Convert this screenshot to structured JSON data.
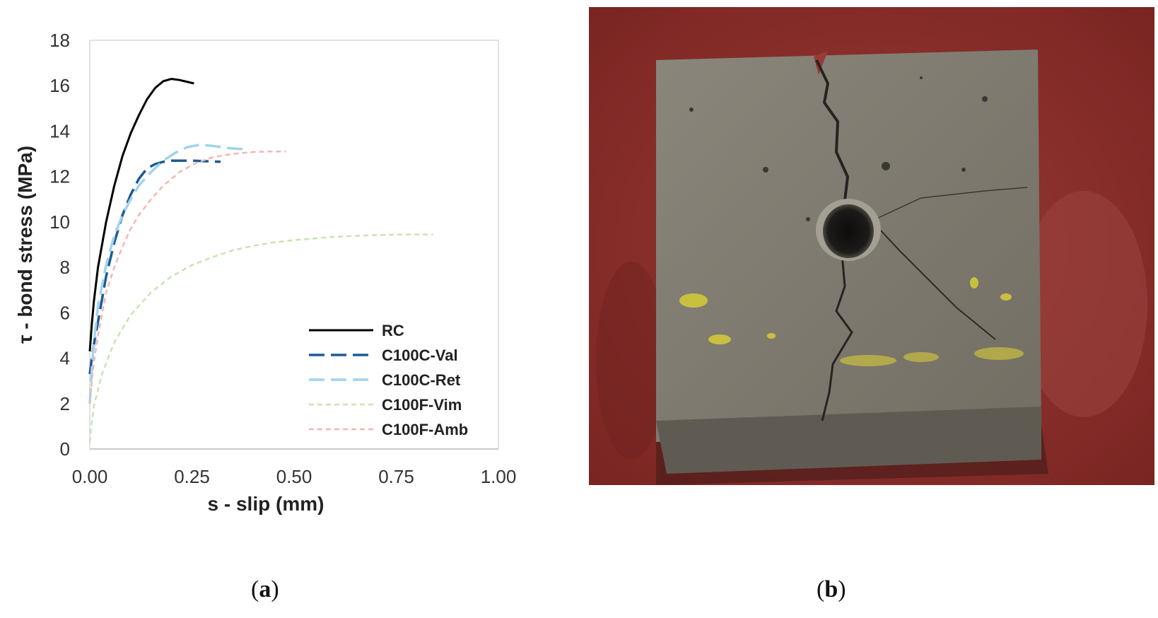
{
  "chart_data": {
    "type": "line",
    "title": "",
    "xlabel": "s - slip (mm)",
    "ylabel": "τ - bond stress (MPa)",
    "xlim": [
      0,
      1
    ],
    "ylim": [
      0,
      18
    ],
    "xticks": [
      "0.00",
      "0.25",
      "0.50",
      "0.75",
      "1.00"
    ],
    "yticks": [
      "0",
      "2",
      "4",
      "6",
      "8",
      "10",
      "12",
      "14",
      "16",
      "18"
    ],
    "grid": false,
    "legend_position": "bottom-right",
    "series": [
      {
        "name": "RC",
        "color": "#000000",
        "dash": "solid",
        "points": [
          [
            0,
            4.3
          ],
          [
            0.005,
            5.5
          ],
          [
            0.01,
            6.5
          ],
          [
            0.02,
            8.0
          ],
          [
            0.04,
            10.0
          ],
          [
            0.06,
            11.6
          ],
          [
            0.08,
            12.9
          ],
          [
            0.1,
            13.9
          ],
          [
            0.12,
            14.7
          ],
          [
            0.14,
            15.4
          ],
          [
            0.16,
            15.9
          ],
          [
            0.18,
            16.2
          ],
          [
            0.2,
            16.3
          ],
          [
            0.22,
            16.25
          ],
          [
            0.255,
            16.1
          ]
        ]
      },
      {
        "name": "C100C-Val",
        "color": "#1f5a96",
        "dash": "longdash",
        "points": [
          [
            0,
            3.3
          ],
          [
            0.005,
            4.0
          ],
          [
            0.01,
            4.6
          ],
          [
            0.02,
            5.6
          ],
          [
            0.04,
            7.6
          ],
          [
            0.06,
            9.1
          ],
          [
            0.08,
            10.3
          ],
          [
            0.1,
            11.2
          ],
          [
            0.12,
            11.9
          ],
          [
            0.14,
            12.35
          ],
          [
            0.16,
            12.55
          ],
          [
            0.18,
            12.65
          ],
          [
            0.2,
            12.7
          ],
          [
            0.25,
            12.7
          ],
          [
            0.32,
            12.65
          ]
        ]
      },
      {
        "name": "C100C-Ret",
        "color": "#9fd4ec",
        "dash": "longdash",
        "points": [
          [
            0,
            2.0
          ],
          [
            0.005,
            3.5
          ],
          [
            0.01,
            4.7
          ],
          [
            0.02,
            6.3
          ],
          [
            0.04,
            8.1
          ],
          [
            0.06,
            9.4
          ],
          [
            0.08,
            10.3
          ],
          [
            0.1,
            11.0
          ],
          [
            0.12,
            11.6
          ],
          [
            0.15,
            12.2
          ],
          [
            0.18,
            12.7
          ],
          [
            0.21,
            13.05
          ],
          [
            0.24,
            13.3
          ],
          [
            0.27,
            13.4
          ],
          [
            0.3,
            13.35
          ],
          [
            0.34,
            13.25
          ],
          [
            0.38,
            13.2
          ]
        ]
      },
      {
        "name": "C100F-Vim",
        "color": "#c9e4b2",
        "dash": "shortdash",
        "points": [
          [
            0,
            0.3
          ],
          [
            0.005,
            1.2
          ],
          [
            0.01,
            1.9
          ],
          [
            0.03,
            3.3
          ],
          [
            0.06,
            4.7
          ],
          [
            0.1,
            5.9
          ],
          [
            0.15,
            6.9
          ],
          [
            0.2,
            7.6
          ],
          [
            0.25,
            8.1
          ],
          [
            0.3,
            8.45
          ],
          [
            0.35,
            8.75
          ],
          [
            0.4,
            8.95
          ],
          [
            0.45,
            9.1
          ],
          [
            0.5,
            9.2
          ],
          [
            0.6,
            9.35
          ],
          [
            0.7,
            9.42
          ],
          [
            0.78,
            9.45
          ],
          [
            0.84,
            9.45
          ]
        ]
      },
      {
        "name": "C100F-Amb",
        "color": "#f3b6b4",
        "dash": "shortdash",
        "points": [
          [
            0,
            2.0
          ],
          [
            0.005,
            3.0
          ],
          [
            0.01,
            3.8
          ],
          [
            0.02,
            5.0
          ],
          [
            0.04,
            6.9
          ],
          [
            0.06,
            8.0
          ],
          [
            0.08,
            8.9
          ],
          [
            0.1,
            9.7
          ],
          [
            0.12,
            10.3
          ],
          [
            0.15,
            11.0
          ],
          [
            0.18,
            11.6
          ],
          [
            0.22,
            12.2
          ],
          [
            0.26,
            12.6
          ],
          [
            0.3,
            12.85
          ],
          [
            0.35,
            13.0
          ],
          [
            0.4,
            13.08
          ],
          [
            0.44,
            13.1
          ],
          [
            0.48,
            13.1
          ]
        ]
      }
    ]
  },
  "captions": {
    "left": "a",
    "right": "b"
  },
  "photo": {
    "subject": "cracked-concrete-cube",
    "colors": {
      "background": "#8a2f2c",
      "concrete": "#7f7b6f",
      "crack": "#262421",
      "paint": "#cfc53a"
    }
  }
}
